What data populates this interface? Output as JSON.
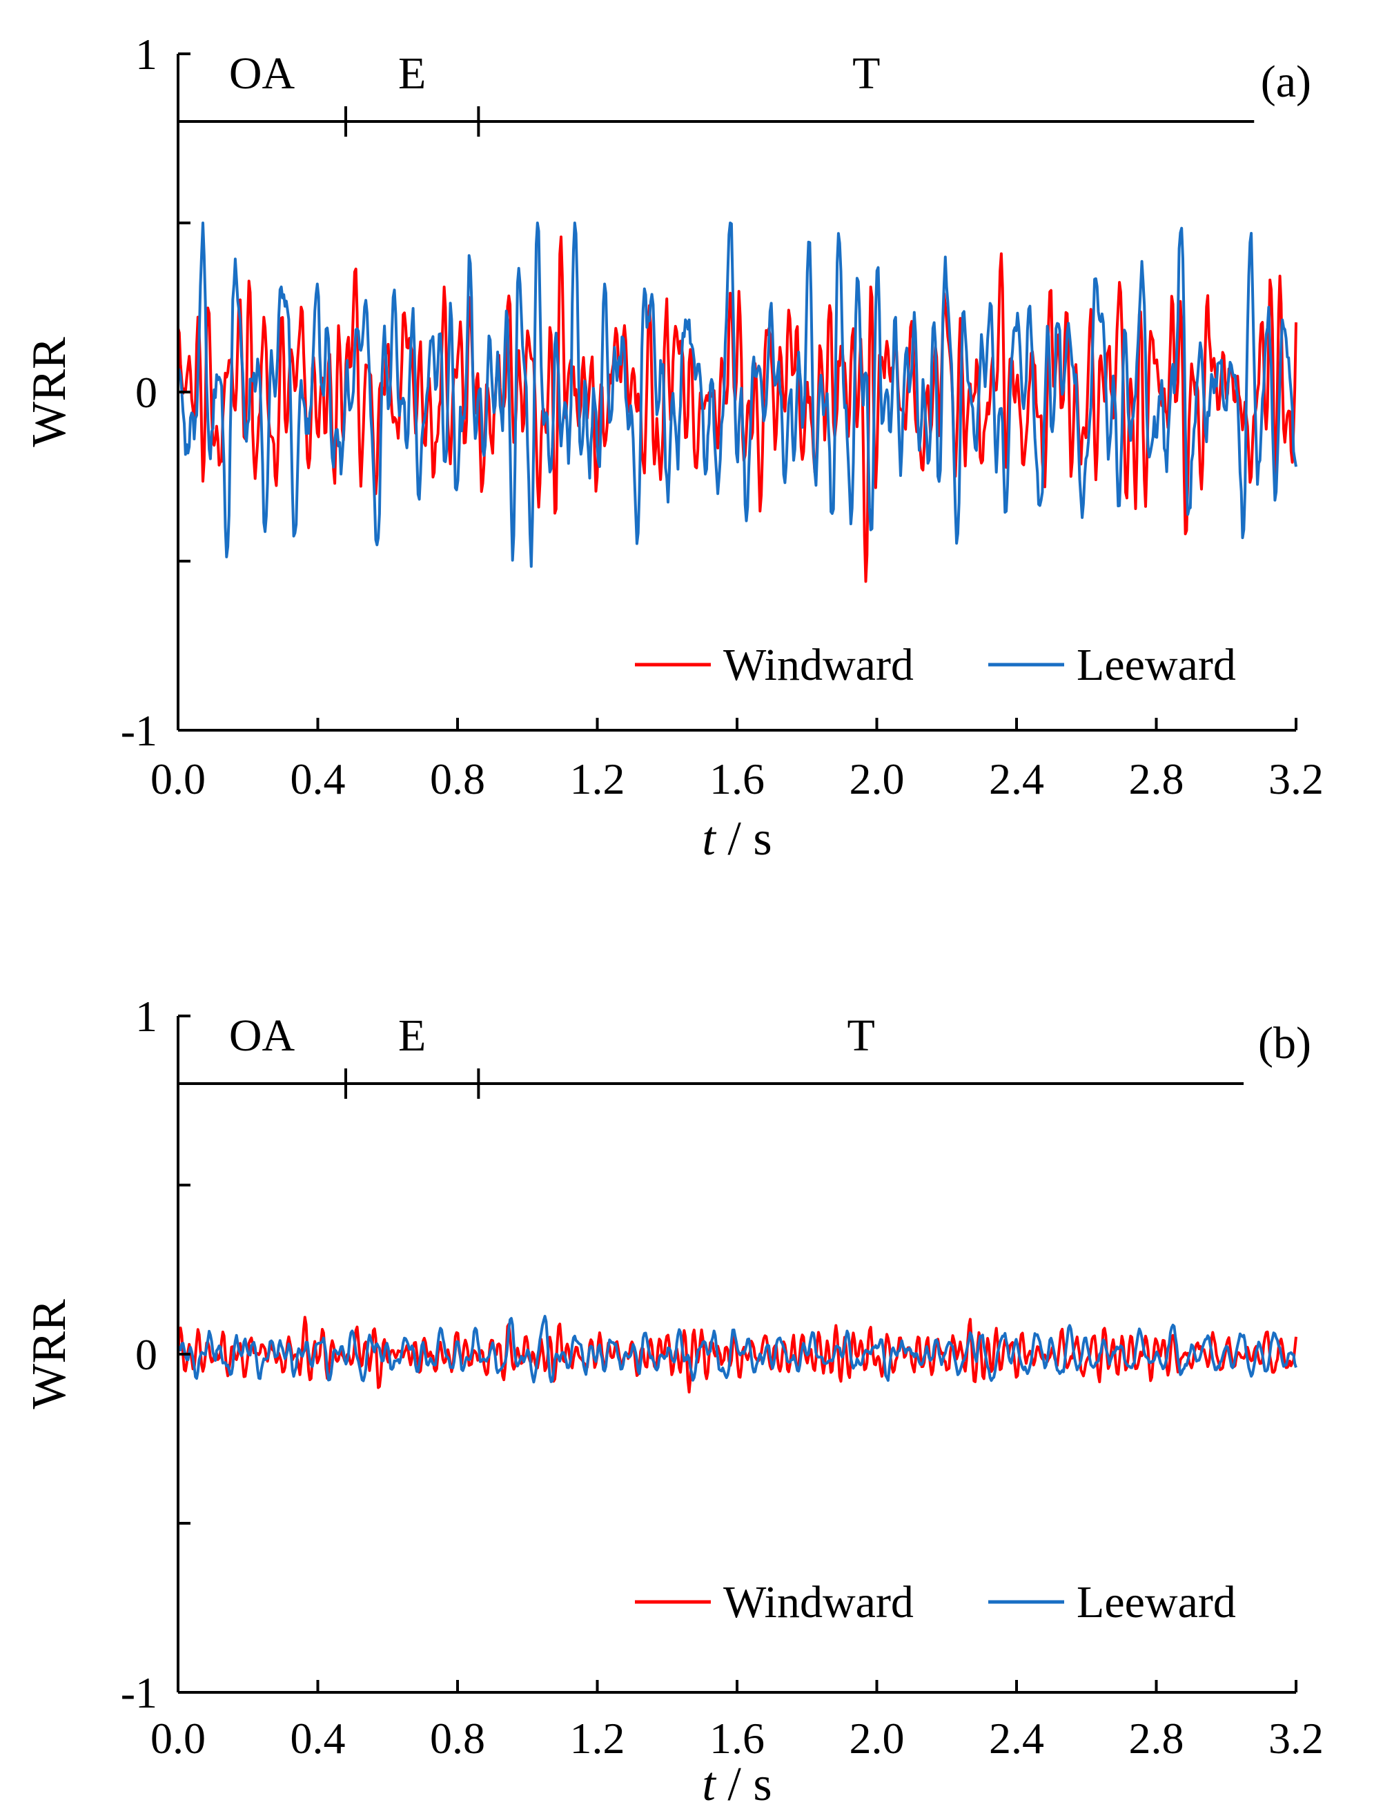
{
  "chart_data": [
    {
      "type": "line",
      "panel_label": "(a)",
      "xlabel_italic": "t",
      "xlabel_rest": " / s",
      "ylabel": "WRR",
      "xlim": [
        0,
        3.2
      ],
      "ylim": [
        -1,
        1
      ],
      "xticks": [
        0.0,
        0.4,
        0.8,
        1.2,
        1.6,
        2.0,
        2.4,
        2.8,
        3.2
      ],
      "xtick_labels": [
        "0.0",
        "0.4",
        "0.8",
        "1.2",
        "1.6",
        "2.0",
        "2.4",
        "2.8",
        "3.2"
      ],
      "yticks": [
        -1,
        -0.5,
        0,
        0.5,
        1
      ],
      "ytick_labels": [
        "-1",
        "",
        "0",
        "",
        "1"
      ],
      "grid": false,
      "legend_position": "bottom-right",
      "phases": {
        "y": 0.8,
        "boundaries": [
          0,
          0.48,
          0.86,
          3.08
        ],
        "labels": [
          "OA",
          "E",
          "T"
        ]
      },
      "series": [
        {
          "name": "Windward",
          "color": "#ff0000",
          "amplitude": 0.5,
          "dominant_freq_hz": 20,
          "value_range": [
            -0.63,
            0.5
          ]
        },
        {
          "name": "Leeward",
          "color": "#1a6fc4",
          "amplitude": 0.5,
          "dominant_freq_hz": 20,
          "value_range": [
            -0.58,
            0.5
          ]
        }
      ]
    },
    {
      "type": "line",
      "panel_label": "(b)",
      "xlabel_italic": "t",
      "xlabel_rest": " / s",
      "ylabel": "WRR",
      "xlim": [
        0,
        3.2
      ],
      "ylim": [
        -1,
        1
      ],
      "xticks": [
        0.0,
        0.4,
        0.8,
        1.2,
        1.6,
        2.0,
        2.4,
        2.8,
        3.2
      ],
      "xtick_labels": [
        "0.0",
        "0.4",
        "0.8",
        "1.2",
        "1.6",
        "2.0",
        "2.4",
        "2.8",
        "3.2"
      ],
      "yticks": [
        -1,
        -0.5,
        0,
        0.5,
        1
      ],
      "ytick_labels": [
        "-1",
        "",
        "0",
        "",
        "1"
      ],
      "grid": false,
      "legend_position": "bottom-right",
      "phases": {
        "y": 0.8,
        "boundaries": [
          0,
          0.48,
          0.86,
          3.05
        ],
        "labels": [
          "OA",
          "E",
          "T"
        ]
      },
      "series": [
        {
          "name": "Windward",
          "color": "#ff0000",
          "amplitude": 0.1,
          "dominant_freq_hz": 20,
          "value_range": [
            -0.18,
            0.14
          ]
        },
        {
          "name": "Leeward",
          "color": "#1a6fc4",
          "amplitude": 0.1,
          "dominant_freq_hz": 20,
          "value_range": [
            -0.13,
            0.16
          ]
        }
      ]
    }
  ]
}
